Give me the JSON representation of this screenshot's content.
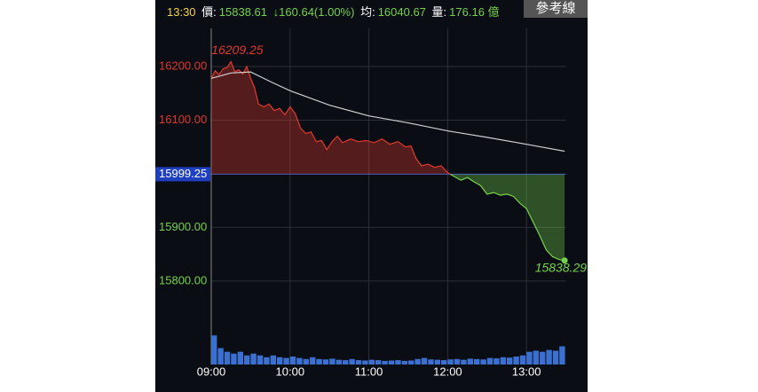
{
  "header": {
    "time": "13:30",
    "price_label": "價:",
    "price": "15838.61",
    "change": "↓160.64(1.00%)",
    "avg_label": "均:",
    "avg": "16040.67",
    "vol_label": "量:",
    "vol": "176.16 億",
    "button": "參考線"
  },
  "chart_data": {
    "type": "line",
    "xlim": [
      0,
      270
    ],
    "xticks": [
      {
        "value": 0,
        "label": "09:00"
      },
      {
        "value": 60,
        "label": "10:00"
      },
      {
        "value": 120,
        "label": "11:00"
      },
      {
        "value": 180,
        "label": "12:00"
      },
      {
        "value": 240,
        "label": "13:00"
      }
    ],
    "ylim": [
      15722,
      16258
    ],
    "yticks": [
      {
        "value": 16200,
        "label": "16200.00"
      },
      {
        "value": 16100,
        "label": "16100.00"
      },
      15999.25,
      {
        "value": 15900,
        "label": "15900.00"
      },
      {
        "value": 15800,
        "label": "15800.00"
      }
    ],
    "reference": 15999.25,
    "up_color": "#e0392f",
    "down_color": "#76d24c",
    "grid": true,
    "series": [
      {
        "color": "#e0392f",
        "x": [
          0,
          3,
          6,
          9,
          12,
          15,
          18,
          21,
          24,
          27,
          30,
          33,
          36,
          40,
          44,
          48,
          52,
          56,
          60,
          64,
          68,
          72,
          76,
          80,
          84,
          88,
          92,
          96,
          100,
          106,
          112,
          118,
          124,
          130,
          136,
          142,
          148,
          152,
          156,
          160,
          165,
          170,
          175,
          180,
          185,
          190,
          195,
          200,
          205,
          210,
          215,
          220,
          225,
          230,
          235,
          240,
          245,
          250,
          255,
          260,
          265,
          269
        ],
        "values": [
          16178,
          16192,
          16185,
          16196,
          16198,
          16209.25,
          16190,
          16194,
          16186,
          16200,
          16178,
          16160,
          16130,
          16125,
          16130,
          16118,
          16122,
          16110,
          16125,
          16112,
          16085,
          16075,
          16078,
          16060,
          16062,
          16045,
          16060,
          16070,
          16058,
          16065,
          16060,
          16062,
          16058,
          16065,
          16055,
          16060,
          16050,
          16052,
          16028,
          16015,
          16018,
          16012,
          16015,
          16002,
          15995,
          15988,
          15993,
          15985,
          15978,
          15962,
          15965,
          15960,
          15962,
          15958,
          15945,
          15935,
          15910,
          15885,
          15858,
          15845,
          15840,
          15838.29
        ]
      },
      {
        "color": "#cfcfcf",
        "x": [
          0,
          15,
          30,
          45,
          60,
          90,
          120,
          150,
          180,
          210,
          240,
          269
        ],
        "values": [
          16178,
          16188,
          16190,
          16172,
          16155,
          16128,
          16108,
          16095,
          16080,
          16068,
          16055,
          16042
        ]
      }
    ],
    "annotations": [
      {
        "text": "16209.25",
        "x": 15,
        "y": 16209.25
      },
      {
        "text": "15838.29",
        "x": 269,
        "y": 15838.29
      }
    ],
    "volume": {
      "color": "#3b6fd0",
      "ylim": [
        0,
        10
      ],
      "x": [
        0,
        5,
        10,
        15,
        20,
        25,
        30,
        35,
        40,
        45,
        50,
        55,
        60,
        65,
        70,
        75,
        80,
        85,
        90,
        95,
        100,
        105,
        110,
        115,
        120,
        125,
        130,
        135,
        140,
        145,
        150,
        155,
        160,
        165,
        170,
        175,
        180,
        185,
        190,
        195,
        200,
        205,
        210,
        215,
        220,
        225,
        230,
        235,
        240,
        245,
        250,
        255,
        260,
        265
      ],
      "values": [
        8,
        4.5,
        3.5,
        3,
        3.5,
        2.5,
        3,
        2.5,
        2,
        2.5,
        2,
        1.8,
        2.2,
        1.8,
        1.5,
        2,
        1.5,
        1.4,
        1.6,
        1.3,
        1.2,
        1.5,
        1.2,
        1.1,
        1.3,
        1.2,
        1,
        1.1,
        1.2,
        1,
        1.1,
        1.5,
        1.8,
        1.4,
        1.3,
        1.2,
        1.4,
        1.5,
        1.3,
        1.6,
        1.5,
        1.4,
        1.8,
        1.7,
        2,
        1.9,
        2.2,
        2.5,
        3.5,
        3.8,
        3.5,
        4,
        3.8,
        5
      ]
    }
  }
}
